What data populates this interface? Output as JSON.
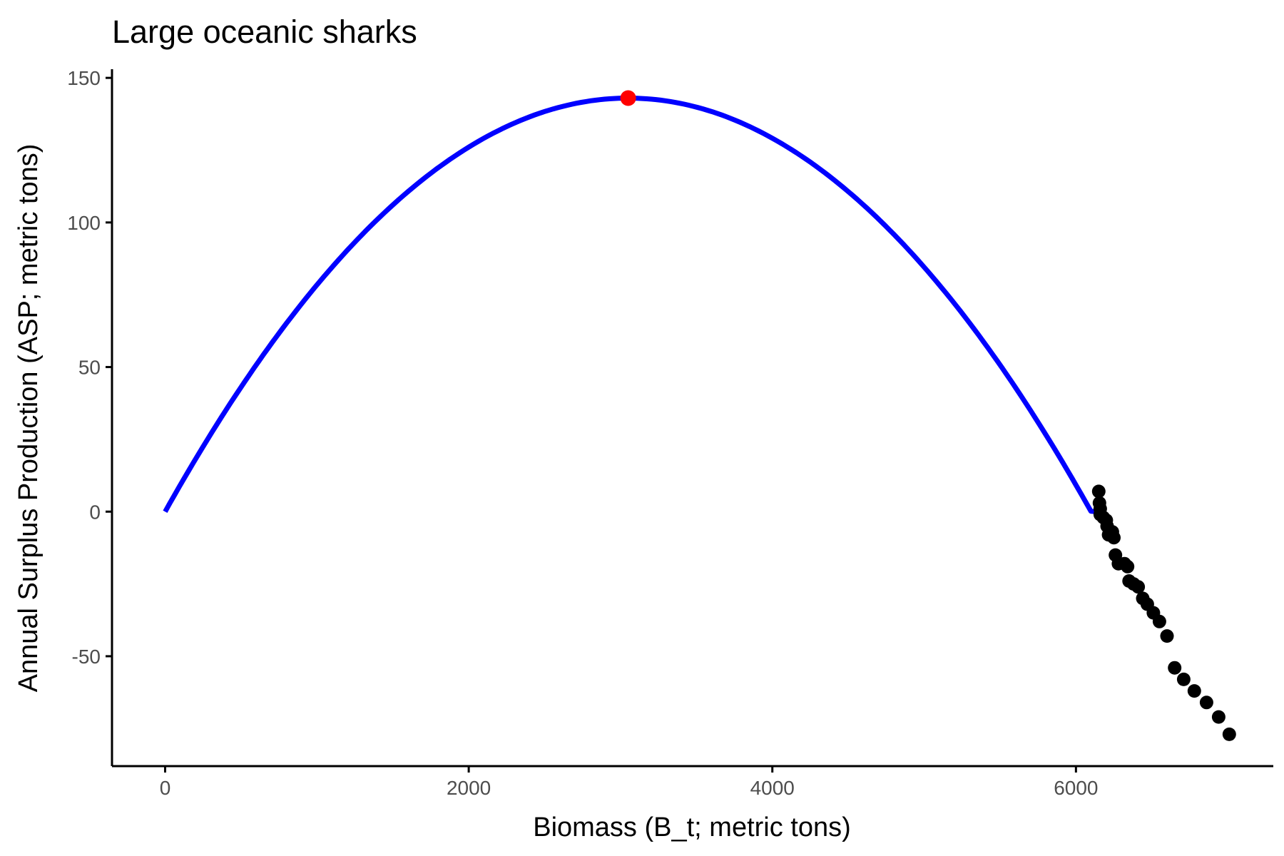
{
  "chart_data": {
    "type": "scatter",
    "title": "Large oceanic sharks",
    "xlabel": "Biomass (B_t; metric tons)",
    "ylabel": "Annual Surplus Production (ASP; metric tons)",
    "xlim": [
      -350,
      7300
    ],
    "ylim": [
      -88,
      153
    ],
    "x_ticks": [
      0,
      2000,
      4000,
      6000
    ],
    "y_ticks": [
      -50,
      0,
      50,
      100,
      150
    ],
    "grid": false,
    "legend": "none",
    "curve": {
      "color": "#0000ff",
      "x_start": 0,
      "x_end": 6160,
      "peak_x": 3050,
      "peak_y": 143,
      "zero_x": 6160
    },
    "msy_point": {
      "x": 3050,
      "y": 143,
      "color": "#ff0000"
    },
    "points_color": "#000000",
    "points": [
      {
        "x": 6150,
        "y": 7
      },
      {
        "x": 6155,
        "y": 3
      },
      {
        "x": 6160,
        "y": 1
      },
      {
        "x": 6160,
        "y": -1
      },
      {
        "x": 6180,
        "y": -2
      },
      {
        "x": 6200,
        "y": -3
      },
      {
        "x": 6205,
        "y": -5
      },
      {
        "x": 6215,
        "y": -8
      },
      {
        "x": 6240,
        "y": -7
      },
      {
        "x": 6250,
        "y": -9
      },
      {
        "x": 6260,
        "y": -15
      },
      {
        "x": 6280,
        "y": -18
      },
      {
        "x": 6320,
        "y": -18
      },
      {
        "x": 6340,
        "y": -19
      },
      {
        "x": 6350,
        "y": -24
      },
      {
        "x": 6380,
        "y": -25
      },
      {
        "x": 6410,
        "y": -26
      },
      {
        "x": 6440,
        "y": -30
      },
      {
        "x": 6470,
        "y": -32
      },
      {
        "x": 6510,
        "y": -35
      },
      {
        "x": 6550,
        "y": -38
      },
      {
        "x": 6600,
        "y": -43
      },
      {
        "x": 6650,
        "y": -54
      },
      {
        "x": 6710,
        "y": -58
      },
      {
        "x": 6780,
        "y": -62
      },
      {
        "x": 6860,
        "y": -66
      },
      {
        "x": 6940,
        "y": -71
      },
      {
        "x": 7010,
        "y": -77
      }
    ]
  }
}
